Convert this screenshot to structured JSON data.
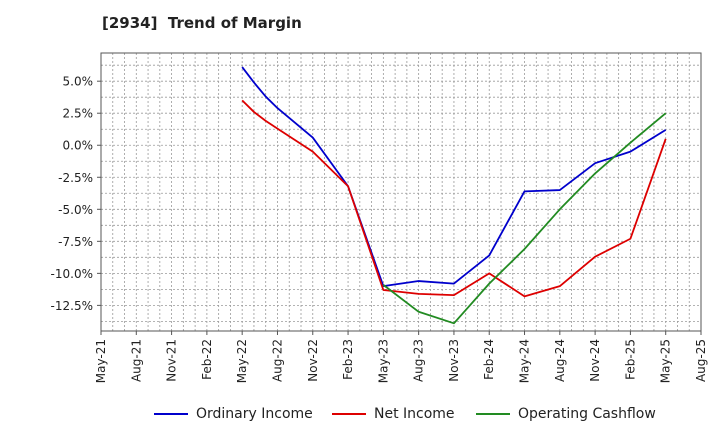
{
  "chart_data": {
    "type": "line",
    "title": "[2934]  Trend of Margin",
    "xlabel": "",
    "ylabel": "",
    "x_ticks": [
      "May-21",
      "Aug-21",
      "Nov-21",
      "Feb-22",
      "May-22",
      "Aug-22",
      "Nov-22",
      "Feb-23",
      "May-23",
      "Aug-23",
      "Nov-23",
      "Feb-24",
      "May-24",
      "Aug-24",
      "Nov-24",
      "Feb-25",
      "May-25",
      "Aug-25"
    ],
    "y_ticks": [
      "5.0%",
      "2.5%",
      "0.0%",
      "-2.5%",
      "-5.0%",
      "-7.5%",
      "-10.0%",
      "-12.5%"
    ],
    "y_tick_values": [
      5.0,
      2.5,
      0.0,
      -2.5,
      -5.0,
      -7.5,
      -10.0,
      -12.5
    ],
    "ylim": [
      -14.5,
      7.2
    ],
    "grid": true,
    "legend_position": "bottom",
    "series": [
      {
        "name": "Ordinary Income",
        "color": "#0000cc",
        "points": [
          [
            "May-22",
            6.1
          ],
          [
            "Jun-22",
            4.9
          ],
          [
            "Jul-22",
            3.8
          ],
          [
            "Aug-22",
            2.9
          ],
          [
            "Nov-22",
            0.6
          ],
          [
            "Feb-23",
            -3.2
          ],
          [
            "May-23",
            -11.0
          ],
          [
            "Aug-23",
            -10.6
          ],
          [
            "Nov-23",
            -10.8
          ],
          [
            "Feb-24",
            -8.6
          ],
          [
            "May-24",
            -3.6
          ],
          [
            "Aug-24",
            -3.5
          ],
          [
            "Nov-24",
            -1.4
          ],
          [
            "Feb-25",
            -0.5
          ],
          [
            "May-25",
            1.2
          ]
        ]
      },
      {
        "name": "Net Income",
        "color": "#dd0000",
        "points": [
          [
            "May-22",
            3.5
          ],
          [
            "Jun-22",
            2.6
          ],
          [
            "Jul-22",
            1.9
          ],
          [
            "Aug-22",
            1.3
          ],
          [
            "Nov-22",
            -0.5
          ],
          [
            "Feb-23",
            -3.2
          ],
          [
            "May-23",
            -11.3
          ],
          [
            "Aug-23",
            -11.6
          ],
          [
            "Nov-23",
            -11.7
          ],
          [
            "Feb-24",
            -10.0
          ],
          [
            "May-24",
            -11.8
          ],
          [
            "Aug-24",
            -11.0
          ],
          [
            "Nov-24",
            -8.7
          ],
          [
            "Feb-25",
            -7.3
          ],
          [
            "May-25",
            0.5
          ]
        ]
      },
      {
        "name": "Operating Cashflow",
        "color": "#228b22",
        "points": [
          [
            "May-23",
            -10.9
          ],
          [
            "Aug-23",
            -13.0
          ],
          [
            "Nov-23",
            -13.9
          ],
          [
            "Feb-24",
            -10.8
          ],
          [
            "May-24",
            -8.1
          ],
          [
            "Aug-24",
            -5.0
          ],
          [
            "Nov-24",
            -2.2
          ],
          [
            "Feb-25",
            0.2
          ],
          [
            "May-25",
            2.5
          ]
        ]
      }
    ]
  }
}
